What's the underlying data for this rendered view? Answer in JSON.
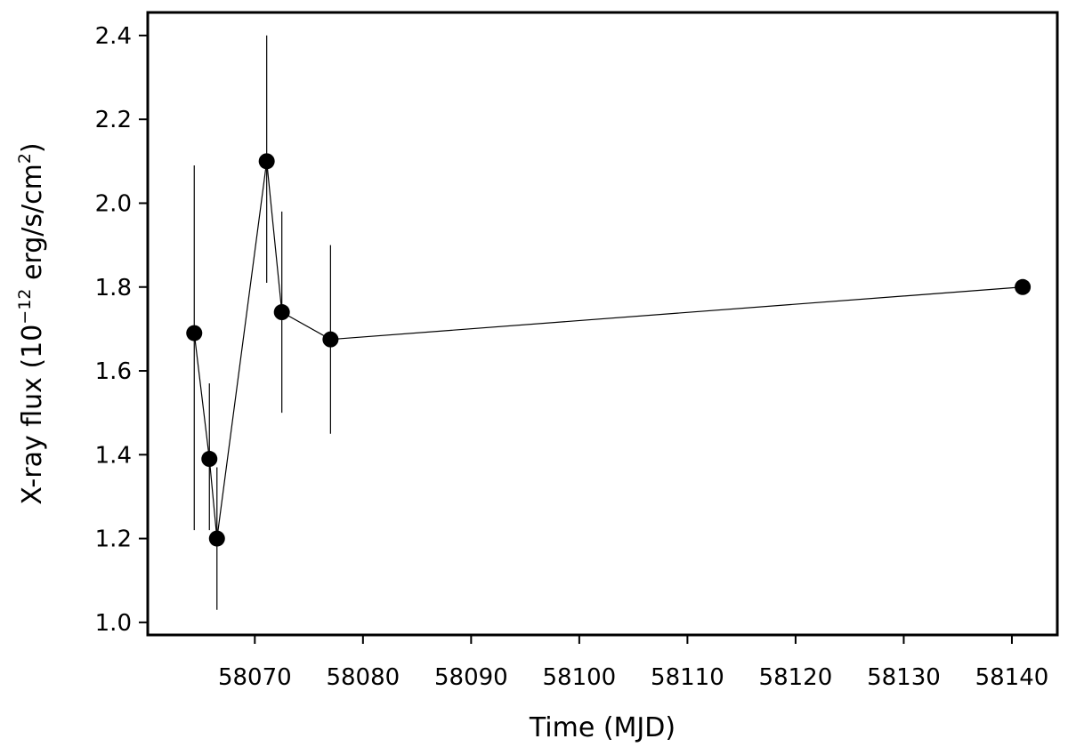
{
  "chart_data": {
    "type": "scatter",
    "title": "",
    "xlabel": "Time (MJD)",
    "ylabel": {
      "prefix": "X-ray flux (10",
      "exponent": "−12",
      "middle": " erg/s/cm",
      "unit_exponent": "2",
      "suffix": ")"
    },
    "xlim": [
      58060.1,
      58144.2
    ],
    "ylim": [
      0.97,
      2.455
    ],
    "xticks": [
      58070,
      58080,
      58090,
      58100,
      58110,
      58120,
      58130,
      58140
    ],
    "yticks": [
      1.0,
      1.2,
      1.4,
      1.6,
      1.8,
      2.0,
      2.2,
      2.4
    ],
    "ytick_labels": [
      "1.0",
      "1.2",
      "1.4",
      "1.6",
      "1.8",
      "2.0",
      "2.2",
      "2.4"
    ],
    "grid": false,
    "legend": null,
    "connect_points": true,
    "marker_color": "#000000",
    "line_color": "#000000",
    "series": [
      {
        "points": [
          {
            "x": 58064.4,
            "y": 1.69,
            "y_low": 1.22,
            "y_high": 2.09
          },
          {
            "x": 58065.8,
            "y": 1.39,
            "y_low": 1.22,
            "y_high": 1.57
          },
          {
            "x": 58066.5,
            "y": 1.2,
            "y_low": 1.03,
            "y_high": 1.37
          },
          {
            "x": 58071.1,
            "y": 2.1,
            "y_low": 1.81,
            "y_high": 2.4
          },
          {
            "x": 58072.5,
            "y": 1.74,
            "y_low": 1.5,
            "y_high": 1.98
          },
          {
            "x": 58077.0,
            "y": 1.675,
            "y_low": 1.45,
            "y_high": 1.9
          },
          {
            "x": 58141.0,
            "y": 1.8,
            "y_low": 1.8,
            "y_high": 1.8
          }
        ]
      }
    ]
  }
}
